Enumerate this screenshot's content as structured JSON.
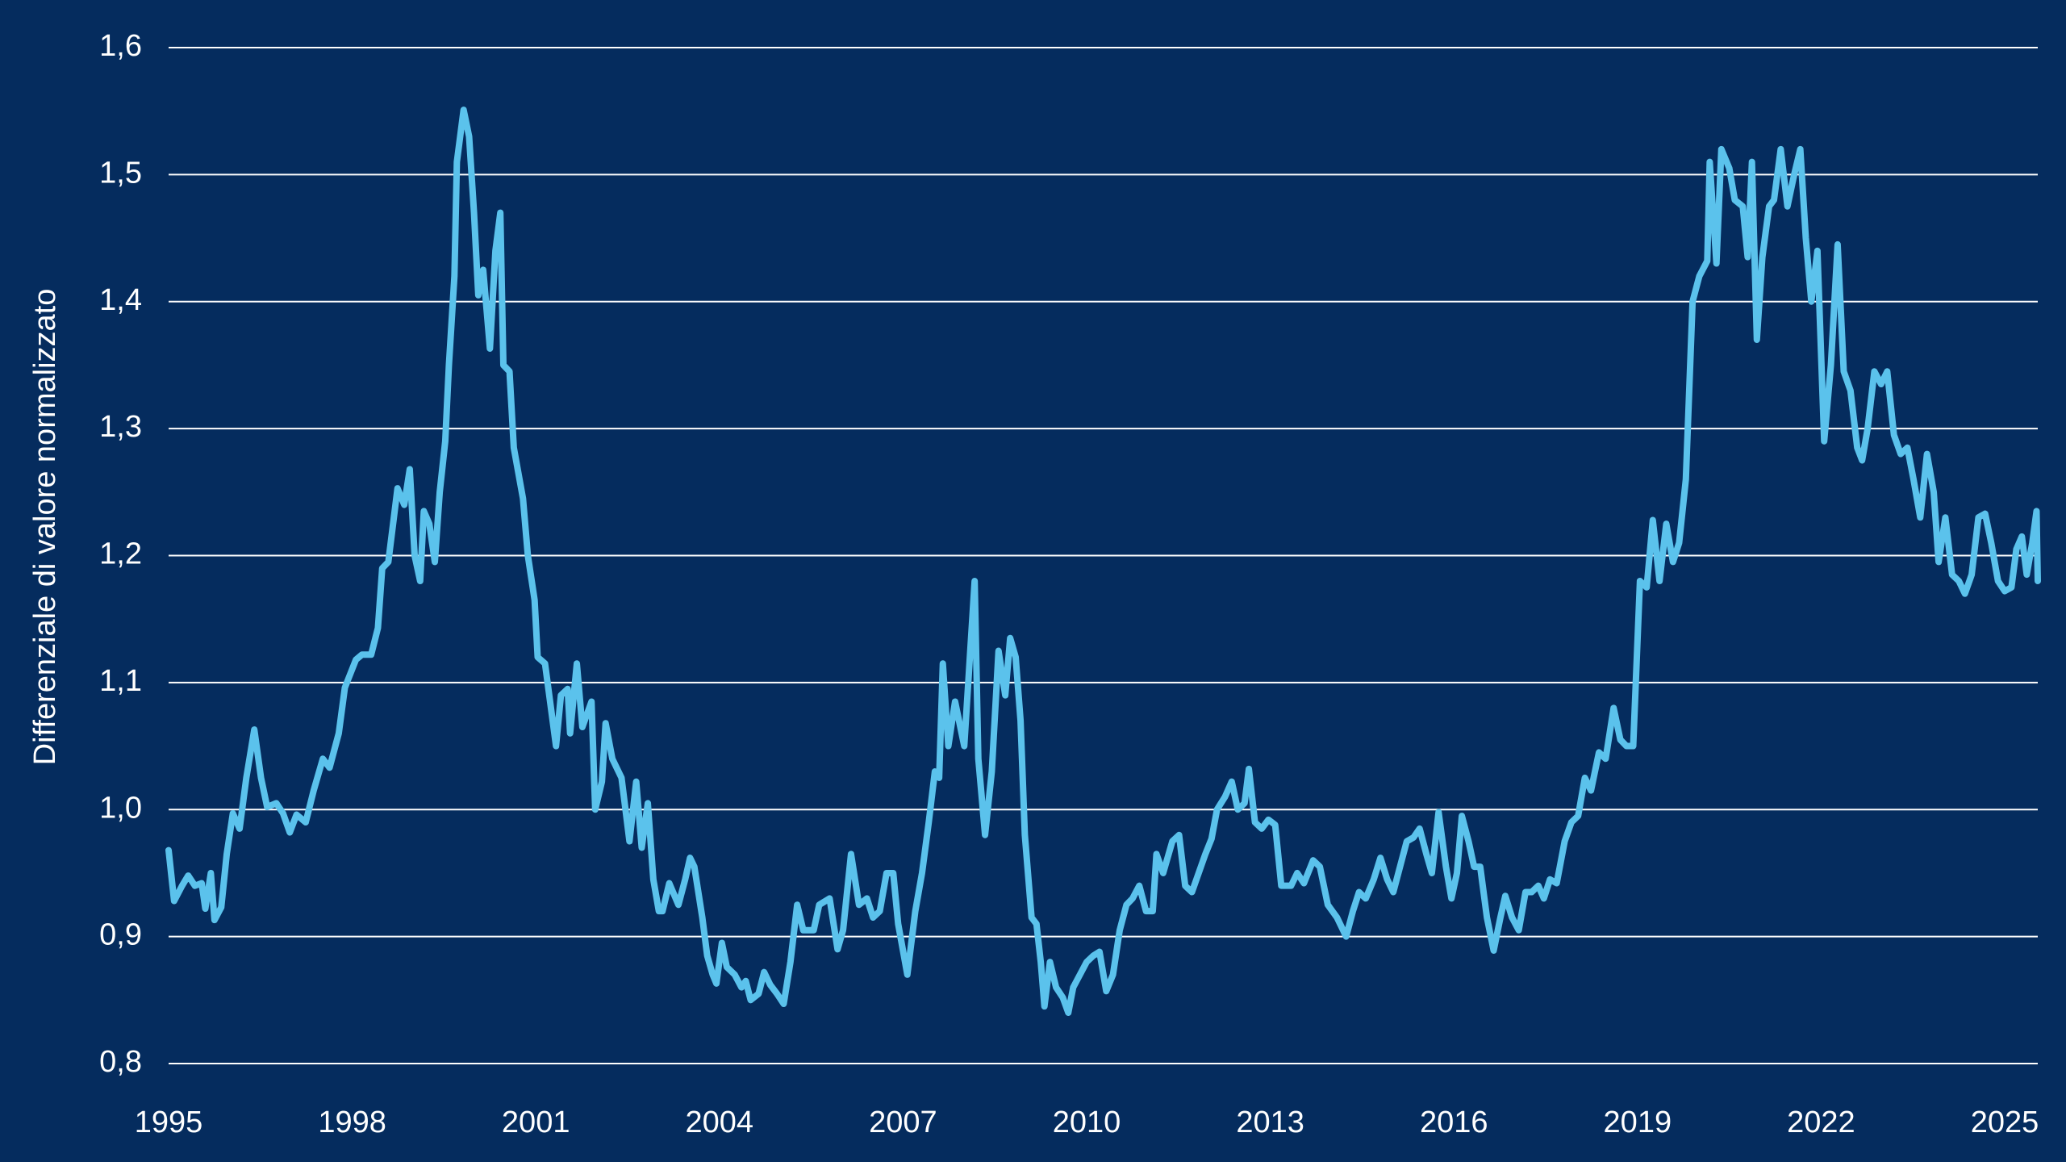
{
  "chart_data": {
    "type": "line",
    "y_label": "Differenziale di valore normalizzato",
    "color": "#5bc2ec",
    "grid": true,
    "xlim": [
      1995,
      2025.54
    ],
    "xticks": [
      1995,
      1998,
      2001,
      2004,
      2007,
      2010,
      2013,
      2016,
      2019,
      2022,
      2025
    ],
    "ylim": [
      0.8,
      1.6
    ],
    "yticks": [
      {
        "value": 0.8,
        "label": "0,8"
      },
      {
        "value": 0.9,
        "label": "0,9"
      },
      {
        "value": 1.0,
        "label": "1,0"
      },
      {
        "value": 1.1,
        "label": "1,1"
      },
      {
        "value": 1.2,
        "label": "1,2"
      },
      {
        "value": 1.3,
        "label": "1,3"
      },
      {
        "value": 1.4,
        "label": "1,4"
      },
      {
        "value": 1.5,
        "label": "1,5"
      },
      {
        "value": 1.6,
        "label": "1,6"
      }
    ],
    "x": [
      1995.0,
      1995.09,
      1995.22,
      1995.32,
      1995.43,
      1995.54,
      1995.6,
      1995.69,
      1995.75,
      1995.86,
      1995.95,
      1996.05,
      1996.16,
      1996.27,
      1996.4,
      1996.51,
      1996.61,
      1996.76,
      1996.87,
      1996.98,
      1997.09,
      1997.24,
      1997.37,
      1997.52,
      1997.63,
      1997.78,
      1997.88,
      1998.06,
      1998.16,
      1998.31,
      1998.42,
      1998.49,
      1998.59,
      1998.74,
      1998.85,
      1998.94,
      1999.02,
      1999.11,
      1999.17,
      1999.26,
      1999.35,
      1999.43,
      1999.52,
      1999.58,
      1999.67,
      1999.71,
      1999.82,
      1999.91,
      1999.99,
      2000.06,
      2000.14,
      2000.25,
      2000.34,
      2000.42,
      2000.47,
      2000.57,
      2000.64,
      2000.79,
      2000.87,
      2000.98,
      2001.03,
      2001.15,
      2001.33,
      2001.41,
      2001.52,
      2001.56,
      2001.67,
      2001.76,
      2001.91,
      2001.97,
      2002.08,
      2002.14,
      2002.25,
      2002.4,
      2002.53,
      2002.64,
      2002.73,
      2002.83,
      2002.92,
      2003.01,
      2003.07,
      2003.18,
      2003.33,
      2003.44,
      2003.52,
      2003.59,
      2003.72,
      2003.8,
      2003.89,
      2003.95,
      2004.04,
      2004.12,
      2004.25,
      2004.36,
      2004.43,
      2004.51,
      2004.64,
      2004.73,
      2004.83,
      2004.94,
      2005.05,
      2005.16,
      2005.27,
      2005.37,
      2005.54,
      2005.63,
      2005.8,
      2005.93,
      2006.02,
      2006.15,
      2006.28,
      2006.41,
      2006.51,
      2006.62,
      2006.73,
      2006.84,
      2006.92,
      2007.07,
      2007.2,
      2007.31,
      2007.42,
      2007.52,
      2007.59,
      2007.65,
      2007.74,
      2007.85,
      2008.0,
      2008.17,
      2008.23,
      2008.34,
      2008.45,
      2008.56,
      2008.67,
      2008.75,
      2008.84,
      2008.92,
      2008.99,
      2009.1,
      2009.18,
      2009.25,
      2009.31,
      2009.4,
      2009.5,
      2009.61,
      2009.7,
      2009.78,
      2009.89,
      2010.0,
      2010.11,
      2010.21,
      2010.32,
      2010.43,
      2010.54,
      2010.65,
      2010.75,
      2010.86,
      2010.97,
      2011.08,
      2011.14,
      2011.25,
      2011.4,
      2011.51,
      2011.61,
      2011.72,
      2011.83,
      2011.94,
      2012.04,
      2012.13,
      2012.26,
      2012.37,
      2012.47,
      2012.58,
      2012.65,
      2012.75,
      2012.86,
      2012.97,
      2013.08,
      2013.18,
      2013.34,
      2013.44,
      2013.55,
      2013.7,
      2013.81,
      2013.94,
      2014.09,
      2014.24,
      2014.35,
      2014.45,
      2014.56,
      2014.69,
      2014.8,
      2014.91,
      2015.01,
      2015.12,
      2015.23,
      2015.34,
      2015.44,
      2015.55,
      2015.64,
      2015.75,
      2015.87,
      2015.96,
      2016.05,
      2016.13,
      2016.24,
      2016.33,
      2016.43,
      2016.54,
      2016.65,
      2016.76,
      2016.84,
      2016.95,
      2017.06,
      2017.17,
      2017.27,
      2017.38,
      2017.47,
      2017.57,
      2017.68,
      2017.81,
      2017.92,
      2018.03,
      2018.14,
      2018.24,
      2018.37,
      2018.48,
      2018.61,
      2018.72,
      2018.82,
      2018.93,
      2019.04,
      2019.15,
      2019.25,
      2019.36,
      2019.47,
      2019.58,
      2019.68,
      2019.79,
      2019.9,
      2020.01,
      2020.14,
      2020.18,
      2020.29,
      2020.37,
      2020.5,
      2020.59,
      2020.72,
      2020.8,
      2020.87,
      2020.95,
      2021.04,
      2021.15,
      2021.23,
      2021.34,
      2021.45,
      2021.56,
      2021.66,
      2021.75,
      2021.84,
      2021.94,
      2022.05,
      2022.16,
      2022.27,
      2022.37,
      2022.48,
      2022.59,
      2022.67,
      2022.76,
      2022.87,
      2022.98,
      2023.08,
      2023.19,
      2023.3,
      2023.41,
      2023.51,
      2023.62,
      2023.73,
      2023.84,
      2023.92,
      2024.03,
      2024.14,
      2024.25,
      2024.35,
      2024.46,
      2024.57,
      2024.68,
      2024.78,
      2024.89,
      2025.0,
      2025.11,
      2025.19,
      2025.28,
      2025.36,
      2025.45,
      2025.52,
      2025.54
    ],
    "values": [
      0.968,
      0.928,
      0.94,
      0.948,
      0.94,
      0.942,
      0.922,
      0.95,
      0.913,
      0.923,
      0.965,
      0.997,
      0.985,
      1.025,
      1.063,
      1.025,
      1.002,
      1.005,
      0.997,
      0.982,
      0.996,
      0.99,
      1.015,
      1.04,
      1.033,
      1.06,
      1.096,
      1.118,
      1.122,
      1.122,
      1.143,
      1.19,
      1.195,
      1.253,
      1.24,
      1.268,
      1.2,
      1.18,
      1.235,
      1.225,
      1.195,
      1.25,
      1.29,
      1.35,
      1.42,
      1.51,
      1.551,
      1.53,
      1.47,
      1.405,
      1.425,
      1.363,
      1.44,
      1.47,
      1.35,
      1.345,
      1.285,
      1.245,
      1.2,
      1.165,
      1.12,
      1.115,
      1.05,
      1.09,
      1.095,
      1.06,
      1.115,
      1.065,
      1.085,
      1.0,
      1.022,
      1.068,
      1.04,
      1.025,
      0.975,
      1.022,
      0.97,
      1.005,
      0.945,
      0.92,
      0.92,
      0.942,
      0.925,
      0.945,
      0.962,
      0.955,
      0.915,
      0.885,
      0.87,
      0.863,
      0.895,
      0.876,
      0.87,
      0.86,
      0.865,
      0.85,
      0.855,
      0.872,
      0.862,
      0.855,
      0.847,
      0.88,
      0.925,
      0.905,
      0.905,
      0.925,
      0.93,
      0.89,
      0.905,
      0.965,
      0.925,
      0.93,
      0.915,
      0.92,
      0.95,
      0.95,
      0.91,
      0.87,
      0.92,
      0.95,
      0.99,
      1.03,
      1.025,
      1.115,
      1.05,
      1.085,
      1.05,
      1.18,
      1.04,
      0.98,
      1.03,
      1.125,
      1.09,
      1.135,
      1.12,
      1.07,
      0.98,
      0.915,
      0.91,
      0.88,
      0.845,
      0.88,
      0.86,
      0.852,
      0.84,
      0.86,
      0.87,
      0.88,
      0.885,
      0.888,
      0.857,
      0.87,
      0.905,
      0.925,
      0.93,
      0.94,
      0.92,
      0.92,
      0.965,
      0.95,
      0.975,
      0.98,
      0.94,
      0.935,
      0.95,
      0.965,
      0.977,
      1.0,
      1.01,
      1.022,
      1.0,
      1.005,
      1.032,
      0.99,
      0.985,
      0.992,
      0.988,
      0.94,
      0.94,
      0.95,
      0.942,
      0.96,
      0.955,
      0.925,
      0.915,
      0.9,
      0.92,
      0.935,
      0.93,
      0.945,
      0.962,
      0.945,
      0.935,
      0.955,
      0.975,
      0.978,
      0.985,
      0.965,
      0.95,
      0.998,
      0.955,
      0.93,
      0.95,
      0.995,
      0.975,
      0.955,
      0.955,
      0.915,
      0.889,
      0.915,
      0.932,
      0.915,
      0.905,
      0.935,
      0.935,
      0.94,
      0.93,
      0.945,
      0.942,
      0.975,
      0.99,
      0.995,
      1.025,
      1.015,
      1.045,
      1.04,
      1.08,
      1.055,
      1.05,
      1.05,
      1.18,
      1.175,
      1.228,
      1.18,
      1.225,
      1.195,
      1.21,
      1.26,
      1.4,
      1.42,
      1.432,
      1.51,
      1.43,
      1.52,
      1.505,
      1.48,
      1.475,
      1.435,
      1.51,
      1.37,
      1.435,
      1.475,
      1.48,
      1.52,
      1.475,
      1.5,
      1.52,
      1.45,
      1.4,
      1.44,
      1.29,
      1.35,
      1.445,
      1.345,
      1.33,
      1.285,
      1.275,
      1.3,
      1.345,
      1.335,
      1.345,
      1.295,
      1.28,
      1.285,
      1.26,
      1.23,
      1.28,
      1.25,
      1.195,
      1.23,
      1.185,
      1.18,
      1.17,
      1.185,
      1.23,
      1.233,
      1.21,
      1.18,
      1.172,
      1.175,
      1.205,
      1.215,
      1.185,
      1.21,
      1.235,
      1.18
    ]
  }
}
